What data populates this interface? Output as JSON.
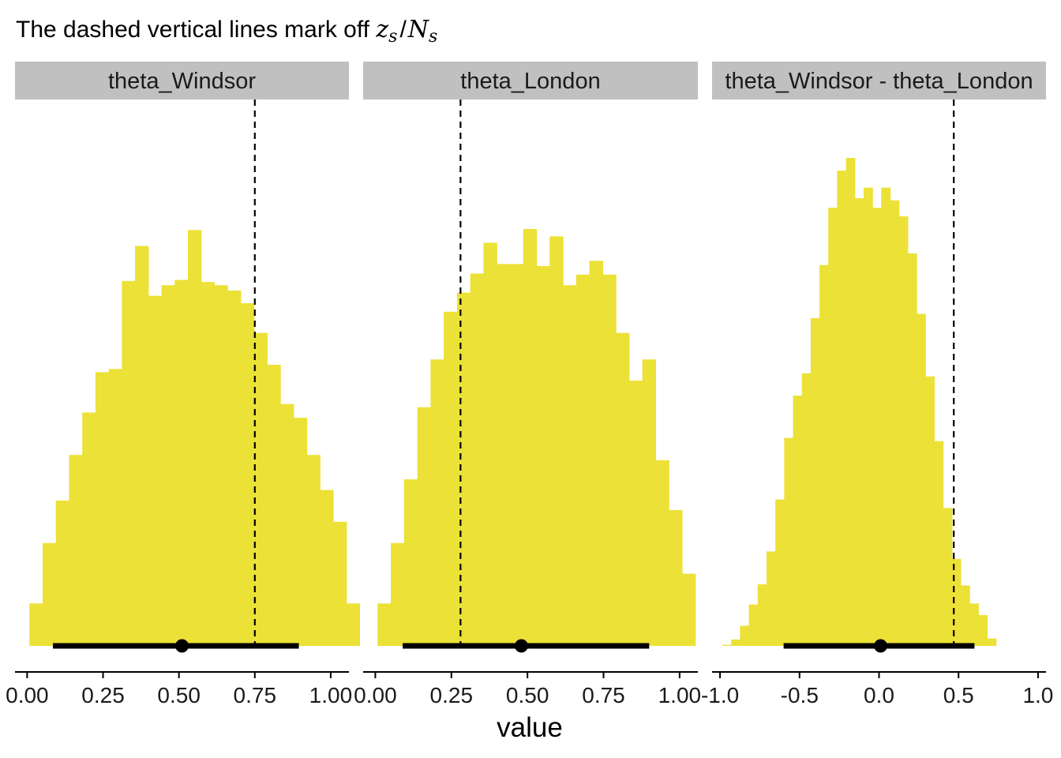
{
  "chart_data": {
    "type": "histogram",
    "title": "The dashed vertical lines mark off z_s/N_s",
    "title_parts": {
      "prefix": "The dashed vertical lines mark off",
      "z": "z",
      "z_sub": "s",
      "slash": "/",
      "n": "N",
      "n_sub": "s"
    },
    "xlabel": "value",
    "ylabel": "",
    "grid": false,
    "legend": "none",
    "colors": {
      "bars": "#ECE136",
      "strip": "#C0C0C0",
      "interval": "#000000",
      "reference_line": "#000000"
    },
    "panels": [
      {
        "label": "theta_Windsor",
        "xlim": [
          -0.04,
          1.06
        ],
        "ticks": [
          0,
          0.25,
          0.5,
          0.75,
          1
        ],
        "tick_labels": [
          "0.00",
          "0.25",
          "0.50",
          "0.75",
          "1.00"
        ],
        "bins": {
          "start": 0.0075,
          "width": 0.0435,
          "counts": [
            40,
            97,
            137,
            180,
            220,
            258,
            261,
            344,
            377,
            330,
            340,
            345,
            392,
            343,
            340,
            335,
            323,
            295,
            265,
            228,
            215,
            180,
            147,
            117,
            40
          ]
        },
        "reference_line": 0.75,
        "point_estimate": 0.51,
        "interval": [
          0.085,
          0.895
        ]
      },
      {
        "label": "theta_London",
        "xlim": [
          -0.04,
          1.06
        ],
        "ticks": [
          0,
          0.25,
          0.5,
          0.75,
          1
        ],
        "tick_labels": [
          "0.00",
          "0.25",
          "0.50",
          "0.75",
          "1.00"
        ],
        "bins": {
          "start": 0.0075,
          "width": 0.0435,
          "counts": [
            40,
            97,
            157,
            225,
            270,
            315,
            333,
            351,
            380,
            360,
            360,
            393,
            358,
            386,
            340,
            350,
            363,
            350,
            295,
            250,
            270,
            175,
            128,
            68
          ]
        },
        "reference_line": 0.28,
        "point_estimate": 0.48,
        "interval": [
          0.09,
          0.9
        ]
      },
      {
        "label": "theta_Windsor - theta_London",
        "xlim": [
          -1.05,
          1.05
        ],
        "ticks": [
          -1,
          -0.5,
          0,
          0.5,
          1
        ],
        "tick_labels": [
          "-1.0",
          "-0.5",
          "0.0",
          "0.5",
          "1.0"
        ],
        "bins": {
          "start": -0.985,
          "width": 0.0555,
          "counts": [
            1,
            6,
            19,
            39,
            58,
            89,
            138,
            196,
            236,
            257,
            309,
            359,
            413,
            448,
            460,
            422,
            432,
            413,
            432,
            420,
            405,
            370,
            313,
            254,
            193,
            130,
            82,
            57,
            40,
            29,
            7
          ]
        },
        "reference_line": 0.47,
        "point_estimate": 0.01,
        "interval": [
          -0.6,
          0.6
        ]
      }
    ]
  }
}
